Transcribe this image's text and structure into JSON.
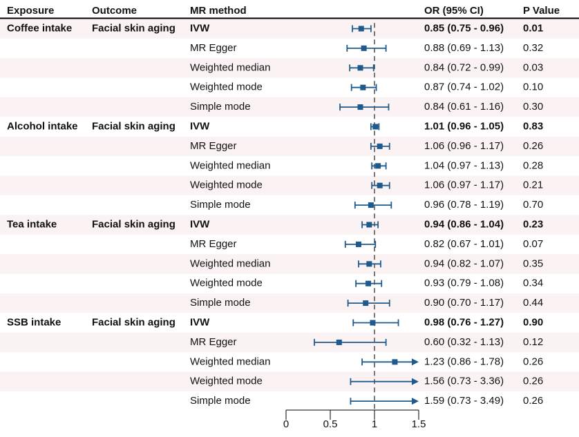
{
  "chart_data": {
    "type": "forest",
    "x_axis": {
      "ticks": [
        0,
        0.5,
        1,
        1.5
      ],
      "tick_labels": [
        "0",
        "0.5",
        "1",
        "1.5"
      ],
      "xlim": [
        0,
        1.5
      ],
      "reference_line": 1
    },
    "columns": {
      "exposure": "Exposure",
      "outcome": "Outcome",
      "method": "MR method",
      "or_ci": "OR (95% CI)",
      "p": "P Value"
    },
    "rows": [
      {
        "exposure": "Coffee intake",
        "outcome": "Facial skin aging",
        "method": "IVW",
        "or": 0.85,
        "lower": 0.75,
        "upper": 0.96,
        "or_ci": "0.85 (0.75 - 0.96)",
        "p": "0.01",
        "bold": true
      },
      {
        "exposure": "",
        "outcome": "",
        "method": "MR Egger",
        "or": 0.88,
        "lower": 0.69,
        "upper": 1.13,
        "or_ci": "0.88 (0.69 - 1.13)",
        "p": "0.32",
        "bold": false
      },
      {
        "exposure": "",
        "outcome": "",
        "method": "Weighted median",
        "or": 0.84,
        "lower": 0.72,
        "upper": 0.99,
        "or_ci": "0.84 (0.72 - 0.99)",
        "p": "0.03",
        "bold": false
      },
      {
        "exposure": "",
        "outcome": "",
        "method": "Weighted mode",
        "or": 0.87,
        "lower": 0.74,
        "upper": 1.02,
        "or_ci": "0.87 (0.74 - 1.02)",
        "p": "0.10",
        "bold": false
      },
      {
        "exposure": "",
        "outcome": "",
        "method": "Simple mode",
        "or": 0.84,
        "lower": 0.61,
        "upper": 1.16,
        "or_ci": "0.84 (0.61 - 1.16)",
        "p": "0.30",
        "bold": false
      },
      {
        "exposure": "Alcohol intake",
        "outcome": "Facial skin aging",
        "method": "IVW",
        "or": 1.01,
        "lower": 0.96,
        "upper": 1.05,
        "or_ci": "1.01 (0.96 - 1.05)",
        "p": "0.83",
        "bold": true
      },
      {
        "exposure": "",
        "outcome": "",
        "method": "MR Egger",
        "or": 1.06,
        "lower": 0.96,
        "upper": 1.17,
        "or_ci": "1.06 (0.96 - 1.17)",
        "p": "0.26",
        "bold": false
      },
      {
        "exposure": "",
        "outcome": "",
        "method": "Weighted median",
        "or": 1.04,
        "lower": 0.97,
        "upper": 1.13,
        "or_ci": "1.04 (0.97 - 1.13)",
        "p": "0.28",
        "bold": false
      },
      {
        "exposure": "",
        "outcome": "",
        "method": "Weighted mode",
        "or": 1.06,
        "lower": 0.97,
        "upper": 1.17,
        "or_ci": "1.06 (0.97 - 1.17)",
        "p": "0.21",
        "bold": false
      },
      {
        "exposure": "",
        "outcome": "",
        "method": "Simple mode",
        "or": 0.96,
        "lower": 0.78,
        "upper": 1.19,
        "or_ci": "0.96 (0.78 - 1.19)",
        "p": "0.70",
        "bold": false
      },
      {
        "exposure": "Tea intake",
        "outcome": "Facial skin aging",
        "method": "IVW",
        "or": 0.94,
        "lower": 0.86,
        "upper": 1.04,
        "or_ci": "0.94 (0.86 - 1.04)",
        "p": "0.23",
        "bold": true
      },
      {
        "exposure": "",
        "outcome": "",
        "method": "MR Egger",
        "or": 0.82,
        "lower": 0.67,
        "upper": 1.01,
        "or_ci": "0.82 (0.67 - 1.01)",
        "p": "0.07",
        "bold": false
      },
      {
        "exposure": "",
        "outcome": "",
        "method": "Weighted median",
        "or": 0.94,
        "lower": 0.82,
        "upper": 1.07,
        "or_ci": "0.94 (0.82 - 1.07)",
        "p": "0.35",
        "bold": false
      },
      {
        "exposure": "",
        "outcome": "",
        "method": "Weighted mode",
        "or": 0.93,
        "lower": 0.79,
        "upper": 1.08,
        "or_ci": "0.93 (0.79 - 1.08)",
        "p": "0.34",
        "bold": false
      },
      {
        "exposure": "",
        "outcome": "",
        "method": "Simple mode",
        "or": 0.9,
        "lower": 0.7,
        "upper": 1.17,
        "or_ci": "0.90 (0.70 - 1.17)",
        "p": "0.44",
        "bold": false
      },
      {
        "exposure": "SSB intake",
        "outcome": "Facial skin aging",
        "method": "IVW",
        "or": 0.98,
        "lower": 0.76,
        "upper": 1.27,
        "or_ci": "0.98 (0.76 - 1.27)",
        "p": "0.90",
        "bold": true
      },
      {
        "exposure": "",
        "outcome": "",
        "method": "MR Egger",
        "or": 0.6,
        "lower": 0.32,
        "upper": 1.13,
        "or_ci": "0.60 (0.32 - 1.13)",
        "p": "0.12",
        "bold": false
      },
      {
        "exposure": "",
        "outcome": "",
        "method": "Weighted median",
        "or": 1.23,
        "lower": 0.86,
        "upper": 1.78,
        "or_ci": "1.23 (0.86 - 1.78)",
        "p": "0.26",
        "bold": false
      },
      {
        "exposure": "",
        "outcome": "",
        "method": "Weighted mode",
        "or": 1.56,
        "lower": 0.73,
        "upper": 3.36,
        "or_ci": "1.56 (0.73 - 3.36)",
        "p": "0.26",
        "bold": false
      },
      {
        "exposure": "",
        "outcome": "",
        "method": "Simple mode",
        "or": 1.59,
        "lower": 0.73,
        "upper": 3.49,
        "or_ci": "1.59 (0.73 - 3.49)",
        "p": "0.26",
        "bold": false
      }
    ],
    "colors": {
      "marker": "#1f5a8c",
      "stripe": "#fbf3f3",
      "text": "#111111"
    }
  }
}
